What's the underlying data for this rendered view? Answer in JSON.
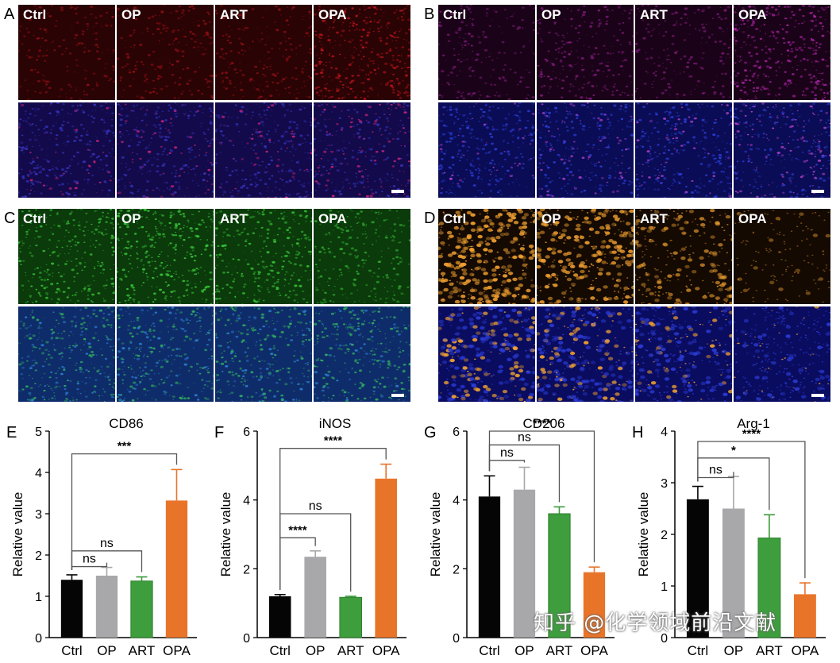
{
  "micrographs": [
    {
      "letter": "A",
      "left": 22,
      "top": 5,
      "colors": {
        "top_bg": "#2a0305",
        "top_dot": "#b0141a",
        "bottom_bg": "#120a4a",
        "bottom_dot": "#3530b8",
        "bottom_accent": "#c0207a"
      },
      "tiles": [
        "Ctrl",
        "OP",
        "ART",
        "OPA"
      ],
      "intensity": [
        0.35,
        0.5,
        0.45,
        1.0
      ]
    },
    {
      "letter": "B",
      "left": 551,
      "top": 5,
      "colors": {
        "top_bg": "#1a0318",
        "top_dot": "#a0209a",
        "bottom_bg": "#0a0c55",
        "bottom_dot": "#2a3ad0",
        "bottom_accent": "#b040c8"
      },
      "tiles": [
        "Ctrl",
        "OP",
        "ART",
        "OPA"
      ],
      "intensity": [
        0.35,
        0.55,
        0.4,
        1.0
      ]
    },
    {
      "letter": "C",
      "left": 22,
      "top": 262,
      "colors": {
        "top_bg": "#0b3a0b",
        "top_dot": "#38c838",
        "bottom_bg": "#0f2c6a",
        "bottom_dot": "#30b060",
        "bottom_accent": "#2a80d0"
      },
      "tiles": [
        "Ctrl",
        "OP",
        "ART",
        "OPA"
      ],
      "intensity": [
        0.8,
        1.0,
        0.85,
        0.55
      ]
    },
    {
      "letter": "D",
      "left": 551,
      "top": 262,
      "colors": {
        "top_bg": "#140a02",
        "top_dot": "#f0a030",
        "bottom_bg": "#0a0c60",
        "bottom_dot": "#f0a030",
        "bottom_accent": "#2a3ad0"
      },
      "tiles": [
        "Ctrl",
        "OP",
        "ART",
        "OPA"
      ],
      "intensity": [
        1.0,
        0.9,
        0.6,
        0.2
      ]
    }
  ],
  "chart_data": [
    {
      "letter": "E",
      "type": "bar",
      "title": "CD86",
      "ylabel": "Relative value",
      "categories": [
        "Ctrl",
        "OP",
        "ART",
        "OPA"
      ],
      "values": [
        1.4,
        1.5,
        1.37,
        3.32
      ],
      "errors": [
        0.12,
        0.2,
        0.1,
        0.75
      ],
      "ylim": [
        0,
        5
      ],
      "yticks": [
        0,
        1,
        2,
        3,
        4,
        5
      ],
      "brackets": [
        {
          "to": 1,
          "label": "ns",
          "y": 1.72
        },
        {
          "to": 2,
          "label": "ns",
          "y": 2.1
        },
        {
          "to": 3,
          "label": "***",
          "y": 4.45
        }
      ]
    },
    {
      "letter": "F",
      "type": "bar",
      "title": "iNOS",
      "ylabel": "Relative value",
      "categories": [
        "Ctrl",
        "OP",
        "ART",
        "OPA"
      ],
      "values": [
        1.2,
        2.35,
        1.17,
        4.62
      ],
      "errors": [
        0.05,
        0.17,
        0.03,
        0.42
      ],
      "ylim": [
        0,
        6
      ],
      "yticks": [
        0,
        2,
        4,
        6
      ],
      "brackets": [
        {
          "to": 1,
          "label": "****",
          "y": 2.9
        },
        {
          "to": 2,
          "label": "ns",
          "y": 3.6
        },
        {
          "to": 3,
          "label": "****",
          "y": 5.5
        }
      ]
    },
    {
      "letter": "G",
      "type": "bar",
      "title": "CD206",
      "ylabel": "Relative value",
      "categories": [
        "Ctrl",
        "OP",
        "ART",
        "OPA"
      ],
      "values": [
        4.1,
        4.3,
        3.6,
        1.9
      ],
      "errors": [
        0.6,
        0.65,
        0.2,
        0.15
      ],
      "ylim": [
        0,
        6
      ],
      "yticks": [
        0,
        2,
        4,
        6
      ],
      "brackets": [
        {
          "to": 1,
          "label": "ns",
          "y": 5.15
        },
        {
          "to": 2,
          "label": "ns",
          "y": 5.6
        },
        {
          "to": 3,
          "label": "****",
          "y": 6.0
        }
      ]
    },
    {
      "letter": "H",
      "type": "bar",
      "title": "Arg-1",
      "ylabel": "Relative value",
      "categories": [
        "Ctrl",
        "OP",
        "ART",
        "OPA"
      ],
      "values": [
        2.68,
        2.5,
        1.93,
        0.84
      ],
      "errors": [
        0.25,
        0.62,
        0.45,
        0.22
      ],
      "ylim": [
        0,
        4
      ],
      "yticks": [
        0,
        1,
        2,
        3,
        4
      ],
      "brackets": [
        {
          "to": 1,
          "label": "ns",
          "y": 3.1
        },
        {
          "to": 2,
          "label": "*",
          "y": 3.48
        },
        {
          "to": 3,
          "label": "****",
          "y": 3.8
        }
      ]
    }
  ],
  "bar_colors": {
    "Ctrl": "#050505",
    "OP": "#a8a8aa",
    "ART": "#3a9a3a",
    "OPA": "#e8742a"
  },
  "watermark": "知乎 @化学领域前沿文献"
}
